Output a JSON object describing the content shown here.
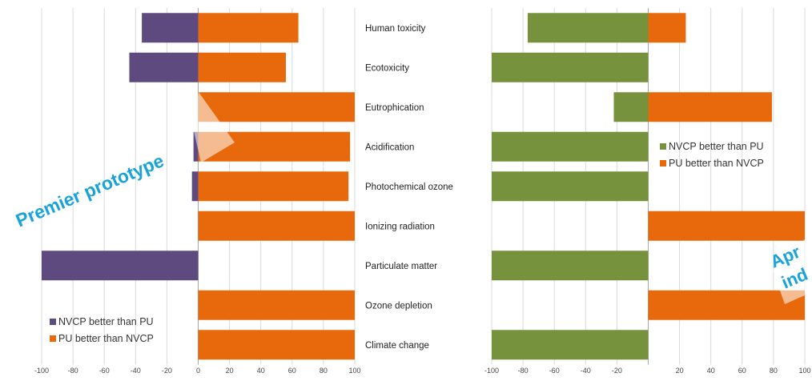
{
  "chart_data": [
    {
      "type": "bar",
      "orientation": "horizontal",
      "categories": [
        "Human toxicity",
        "Ecotoxicity",
        "Eutrophication",
        "Acidification",
        "Photochemical ozone",
        "Ionizing radiation",
        "Particulate matter",
        "Ozone depletion",
        "Climate change"
      ],
      "series": [
        {
          "name": "NVCP better than PU",
          "color": "#5e4a7e",
          "values": [
            -36,
            -44,
            0,
            -3,
            -4,
            0,
            -100,
            0,
            0
          ]
        },
        {
          "name": "PU better than NVCP",
          "color": "#e8680c",
          "values": [
            64,
            56,
            100,
            97,
            96,
            100,
            0,
            100,
            100
          ]
        }
      ],
      "xlim": [
        -100,
        100
      ],
      "xticks": [
        "-100",
        "-80",
        "-60",
        "-40",
        "-20",
        "0",
        "20",
        "40",
        "60",
        "80",
        "100"
      ],
      "grid": true,
      "legend": "bottom-left"
    },
    {
      "type": "bar",
      "orientation": "horizontal",
      "categories": [
        "Human toxicity",
        "Ecotoxicity",
        "Eutrophication",
        "Acidification",
        "Photochemical ozone",
        "Ionizing radiation",
        "Particulate matter",
        "Ozone depletion",
        "Climate change"
      ],
      "series": [
        {
          "name": "NVCP better than PU",
          "color": "#76923c",
          "values": [
            -77,
            -100,
            -22,
            -100,
            -100,
            0,
            -100,
            0,
            -100
          ]
        },
        {
          "name": "PU better than NVCP",
          "color": "#e8680c",
          "values": [
            24,
            0,
            79,
            0,
            0,
            100,
            0,
            100,
            0
          ]
        }
      ],
      "xlim": [
        -100,
        100
      ],
      "xticks": [
        "-100",
        "-80",
        "-60",
        "-40",
        "-20",
        "",
        "20",
        "40",
        "60",
        "80",
        "100"
      ],
      "grid": true,
      "legend": "right"
    }
  ],
  "overlay_texts": [
    "Premier prototype",
    "Apr",
    "ind"
  ]
}
